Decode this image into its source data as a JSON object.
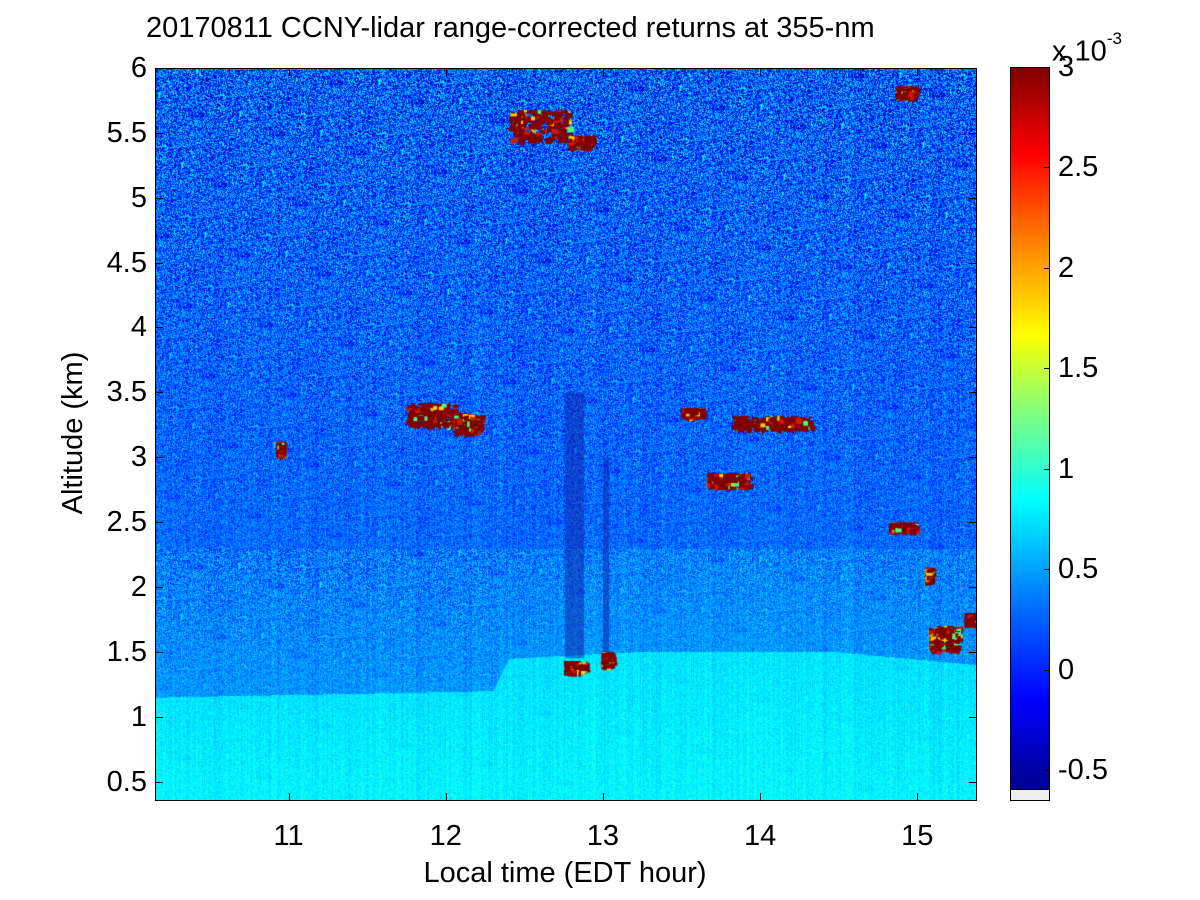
{
  "chart_data": {
    "type": "heatmap",
    "title": "20170811 CCNY-lidar range-corrected returns at 355-nm",
    "xlabel": "Local time (EDT hour)",
    "ylabel": "Altitude (km)",
    "xlim": [
      10.15,
      15.38
    ],
    "ylim": [
      0.35,
      6.0
    ],
    "x_ticks": [
      "11",
      "12",
      "13",
      "14",
      "15"
    ],
    "x_tick_values": [
      11,
      12,
      13,
      14,
      15
    ],
    "y_ticks": [
      "0.5",
      "1",
      "1.5",
      "2",
      "2.5",
      "3",
      "3.5",
      "4",
      "4.5",
      "5",
      "5.5",
      "6"
    ],
    "y_tick_values": [
      0.5,
      1,
      1.5,
      2,
      2.5,
      3,
      3.5,
      4,
      4.5,
      5,
      5.5,
      6
    ],
    "colorbar": {
      "colormap": "jet",
      "range": [
        -0.6,
        3.0
      ],
      "exponent_base": "x 10",
      "exponent": "-3",
      "ticks": [
        "-0.5",
        "0",
        "0.5",
        "1",
        "1.5",
        "2",
        "2.5",
        "3"
      ],
      "tick_values": [
        -0.5,
        0,
        0.5,
        1,
        1.5,
        2,
        2.5,
        3
      ]
    },
    "boundary_layer": {
      "description": "aerosol layer",
      "top_km_by_time": [
        [
          10.15,
          1.15
        ],
        [
          12.3,
          1.2
        ],
        [
          12.4,
          1.45
        ],
        [
          13.2,
          1.5
        ],
        [
          14.5,
          1.5
        ],
        [
          15.38,
          1.4
        ]
      ],
      "value": 0.75
    },
    "cloud_features": [
      {
        "t0": 10.92,
        "t1": 10.95,
        "z0": 3.02,
        "z1": 3.12
      },
      {
        "t0": 11.74,
        "t1": 12.05,
        "z0": 3.25,
        "z1": 3.42
      },
      {
        "t0": 12.05,
        "t1": 12.22,
        "z0": 3.2,
        "z1": 3.34
      },
      {
        "t0": 12.4,
        "t1": 12.78,
        "z0": 5.45,
        "z1": 5.68
      },
      {
        "t0": 12.78,
        "t1": 12.92,
        "z0": 5.4,
        "z1": 5.48
      },
      {
        "t0": 12.75,
        "t1": 12.88,
        "z0": 1.35,
        "z1": 1.43
      },
      {
        "t0": 12.99,
        "t1": 13.05,
        "z0": 1.4,
        "z1": 1.5
      },
      {
        "t0": 13.5,
        "t1": 13.62,
        "z0": 3.32,
        "z1": 3.38
      },
      {
        "t0": 13.82,
        "t1": 14.32,
        "z0": 3.22,
        "z1": 3.32
      },
      {
        "t0": 13.66,
        "t1": 13.92,
        "z0": 2.78,
        "z1": 2.88
      },
      {
        "t0": 14.82,
        "t1": 14.98,
        "z0": 2.44,
        "z1": 2.5
      },
      {
        "t0": 14.86,
        "t1": 14.98,
        "z0": 5.78,
        "z1": 5.86
      },
      {
        "t0": 15.05,
        "t1": 15.08,
        "z0": 2.05,
        "z1": 2.15
      },
      {
        "t0": 15.07,
        "t1": 15.26,
        "z0": 1.52,
        "z1": 1.7
      },
      {
        "t0": 15.3,
        "t1": 15.38,
        "z0": 1.72,
        "z1": 1.8
      }
    ],
    "dark_columns": [
      {
        "t0": 12.76,
        "t1": 12.88,
        "z0": 1.45,
        "z1": 3.5
      },
      {
        "t0": 13.0,
        "t1": 13.04,
        "z0": 1.5,
        "z1": 3.0
      }
    ]
  }
}
